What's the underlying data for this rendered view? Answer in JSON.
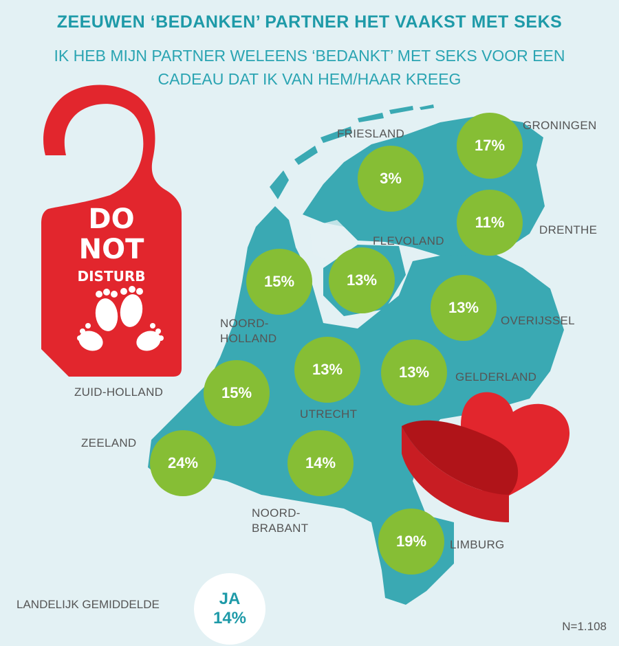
{
  "title": "ZEEUWEN ‘BEDANKEN’ PARTNER HET VAAKST MET SEKS",
  "subtitle": [
    "IK HEB MIJN PARTNER WELEENS ‘BEDANKT’ MET SEKS VOOR EEN",
    "CADEAU DAT IK VAN HEM/HAAR KREEG"
  ],
  "sign": {
    "line1": "DO",
    "line2": "NOT",
    "line3": "DISTURB"
  },
  "provinces": [
    {
      "name": "GRONINGEN",
      "value": "17%"
    },
    {
      "name": "FRIESLAND",
      "value": "3%"
    },
    {
      "name": "DRENTHE",
      "value": "11%"
    },
    {
      "name": "FLEVOLAND",
      "value": "13%"
    },
    {
      "name": "NOORD-HOLLAND",
      "name_lines": [
        "NOORD-",
        "HOLLAND"
      ],
      "value": "15%"
    },
    {
      "name": "OVERIJSSEL",
      "value": "13%"
    },
    {
      "name": "UTRECHT",
      "value": "13%"
    },
    {
      "name": "GELDERLAND",
      "value": "13%"
    },
    {
      "name": "ZUID-HOLLAND",
      "value": "15%"
    },
    {
      "name": "ZEELAND",
      "value": "24%"
    },
    {
      "name": "NOORD-BRABANT",
      "name_lines": [
        "NOORD-",
        "BRABANT"
      ],
      "value": "14%"
    },
    {
      "name": "LIMBURG",
      "value": "19%"
    }
  ],
  "national": {
    "label": "LANDELIJK GEMIDDELDE",
    "answer": "JA",
    "value": "14%"
  },
  "sample": "N=1.108",
  "colors": {
    "map": "#3aa9b3",
    "bubble": "#86be35",
    "accent": "#1e9aa8",
    "sign": "#e2262d"
  }
}
